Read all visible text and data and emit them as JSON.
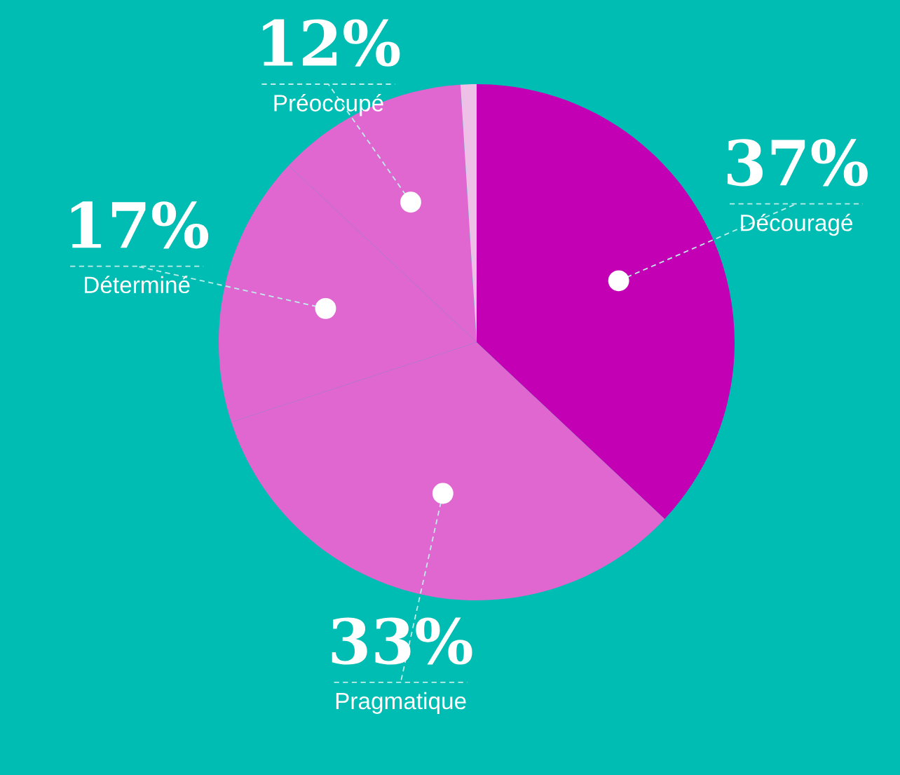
{
  "chart_data": {
    "type": "pie",
    "categories": [
      "Découragé",
      "Pragmatique",
      "Déterminé",
      "Préoccupé",
      null
    ],
    "values": [
      37,
      33,
      17,
      12,
      1
    ],
    "colors": [
      "#c300b4",
      "#e066d0",
      "#e066d0",
      "#e066d0",
      "#eec0e8"
    ],
    "value_labels": [
      "37%",
      "33%",
      "17%",
      "12%",
      null
    ],
    "legend": false
  }
}
